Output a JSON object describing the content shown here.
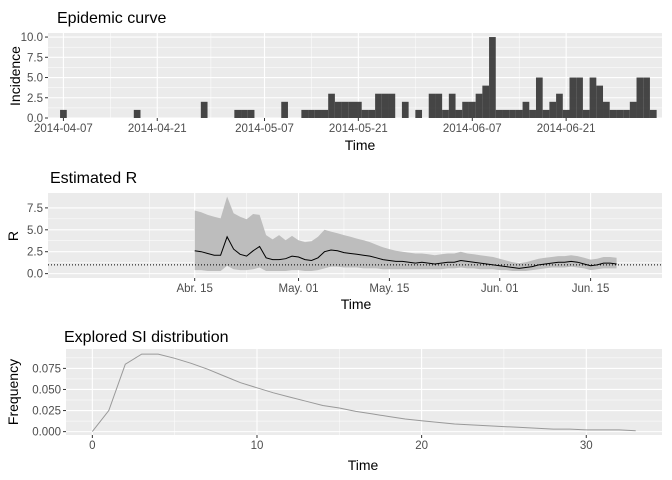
{
  "chart_data": [
    {
      "type": "bar",
      "title": "Epidemic curve",
      "xlabel": "Time",
      "ylabel": "Incidence",
      "x_start_date": "2014-04-07",
      "bar_width_days": 1,
      "incidence": [
        1,
        0,
        0,
        0,
        0,
        0,
        0,
        0,
        0,
        0,
        0,
        1,
        0,
        0,
        0,
        0,
        0,
        0,
        0,
        0,
        0,
        2,
        0,
        0,
        0,
        0,
        1,
        1,
        1,
        0,
        0,
        0,
        0,
        2,
        0,
        0,
        1,
        1,
        1,
        1,
        3,
        2,
        2,
        2,
        2,
        1,
        1,
        3,
        3,
        3,
        0,
        2,
        0,
        1,
        0,
        3,
        3,
        1,
        3,
        1,
        2,
        2,
        3,
        4,
        10,
        1,
        1,
        1,
        1,
        2,
        1,
        5,
        1,
        2,
        3,
        1,
        5,
        5,
        1,
        5,
        4,
        2,
        1,
        1,
        1,
        2,
        5,
        5,
        1
      ],
      "x_ticks": [
        "2014-04-07",
        "2014-04-21",
        "2014-05-07",
        "2014-05-21",
        "2014-06-07",
        "2014-06-21"
      ],
      "y_ticks": [
        "0.0",
        "2.5",
        "5.0",
        "7.5",
        "10.0"
      ],
      "ylim": [
        0,
        10.5
      ]
    },
    {
      "type": "line",
      "title": "Estimated R",
      "xlabel": "Time",
      "ylabel": "R",
      "x_start_date": "2014-04-15",
      "mean": [
        2.6,
        2.5,
        2.3,
        2.1,
        2.1,
        4.2,
        2.8,
        2.2,
        2.0,
        2.6,
        3.1,
        1.8,
        1.6,
        1.6,
        1.7,
        2.0,
        1.9,
        1.6,
        1.5,
        1.8,
        2.5,
        2.7,
        2.6,
        2.4,
        2.3,
        2.2,
        2.1,
        2.0,
        1.8,
        1.6,
        1.5,
        1.4,
        1.4,
        1.3,
        1.2,
        1.3,
        1.2,
        1.1,
        1.2,
        1.3,
        1.3,
        1.5,
        1.4,
        1.3,
        1.2,
        1.1,
        1.0,
        0.9,
        0.8,
        0.7,
        0.6,
        0.7,
        0.8,
        1.0,
        1.1,
        1.2,
        1.3,
        1.3,
        1.4,
        1.3,
        1.1,
        0.9,
        1.0,
        1.2,
        1.2,
        1.1
      ],
      "upper": [
        7.2,
        7.0,
        6.7,
        6.5,
        6.3,
        8.8,
        6.9,
        6.5,
        6.2,
        6.8,
        6.7,
        4.4,
        3.9,
        4.4,
        3.8,
        4.3,
        3.8,
        3.6,
        3.7,
        4.2,
        5.0,
        4.8,
        4.6,
        4.4,
        4.2,
        4.0,
        3.8,
        3.6,
        3.3,
        3.0,
        2.8,
        2.6,
        2.5,
        2.4,
        2.3,
        2.3,
        2.2,
        2.1,
        2.2,
        2.3,
        2.3,
        2.5,
        2.3,
        2.2,
        2.1,
        2.0,
        1.9,
        1.7,
        1.5,
        1.3,
        1.2,
        1.3,
        1.5,
        1.7,
        1.8,
        1.9,
        2.0,
        2.0,
        2.1,
        2.0,
        1.8,
        1.6,
        1.7,
        1.9,
        1.9,
        1.8
      ],
      "lower": [
        0.4,
        0.4,
        0.3,
        0.3,
        0.3,
        0.9,
        0.5,
        0.4,
        0.4,
        0.5,
        0.7,
        0.3,
        0.3,
        0.3,
        0.3,
        0.4,
        0.4,
        0.3,
        0.3,
        0.4,
        0.6,
        0.8,
        0.8,
        0.7,
        0.7,
        0.7,
        0.6,
        0.6,
        0.6,
        0.5,
        0.5,
        0.5,
        0.5,
        0.5,
        0.5,
        0.5,
        0.5,
        0.5,
        0.5,
        0.6,
        0.6,
        0.7,
        0.6,
        0.6,
        0.5,
        0.5,
        0.5,
        0.4,
        0.4,
        0.3,
        0.3,
        0.3,
        0.4,
        0.5,
        0.6,
        0.7,
        0.7,
        0.7,
        0.8,
        0.7,
        0.6,
        0.4,
        0.5,
        0.6,
        0.6,
        0.6
      ],
      "reference_line": 1,
      "x_ticks": [
        "Abr. 15",
        "May. 01",
        "May. 15",
        "Jun. 01",
        "Jun. 15"
      ],
      "y_ticks": [
        "0.0",
        "2.5",
        "5.0",
        "7.5"
      ],
      "ylim": [
        -0.5,
        9.2
      ]
    },
    {
      "type": "line",
      "title": "Explored SI distribution",
      "xlabel": "Time",
      "ylabel": "Frequency",
      "x": [
        0,
        1,
        2,
        3,
        4,
        5,
        6,
        7,
        8,
        9,
        10,
        11,
        12,
        13,
        14,
        15,
        16,
        17,
        18,
        19,
        20,
        21,
        22,
        23,
        24,
        25,
        26,
        27,
        28,
        29,
        30,
        31,
        32,
        33
      ],
      "y": [
        0.0,
        0.025,
        0.08,
        0.092,
        0.092,
        0.087,
        0.081,
        0.074,
        0.066,
        0.058,
        0.052,
        0.046,
        0.041,
        0.036,
        0.031,
        0.028,
        0.024,
        0.021,
        0.018,
        0.015,
        0.013,
        0.011,
        0.009,
        0.008,
        0.007,
        0.006,
        0.005,
        0.004,
        0.003,
        0.003,
        0.002,
        0.002,
        0.002,
        0.001
      ],
      "x_ticks": [
        "0",
        "10",
        "20",
        "30"
      ],
      "y_ticks": [
        "0.000",
        "0.025",
        "0.050",
        "0.075"
      ],
      "xlim": [
        -1.6,
        34.6
      ],
      "ylim": [
        -0.004,
        0.098
      ]
    }
  ]
}
